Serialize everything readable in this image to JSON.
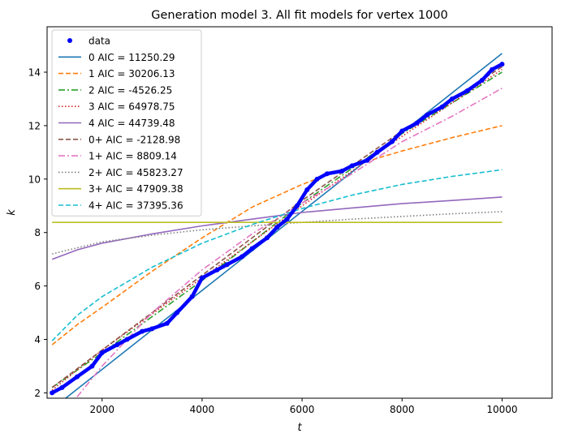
{
  "chart_data": {
    "type": "line",
    "title": "Generation model 3. All fit models for vertex 1000",
    "xlabel": "t",
    "ylabel": "k",
    "xlim": [
      900,
      11000
    ],
    "ylim": [
      1.8,
      15.7
    ],
    "xticks": [
      2000,
      4000,
      6000,
      8000,
      10000
    ],
    "xtick_labels": [
      "2000",
      "4000",
      "6000",
      "8000",
      "10000"
    ],
    "yticks": [
      2,
      4,
      6,
      8,
      10,
      12,
      14
    ],
    "ytick_labels": [
      "2",
      "4",
      "6",
      "8",
      "10",
      "12",
      "14"
    ],
    "grid": false,
    "legend_position": "upper-left",
    "data": {
      "name": "data",
      "color": "#0000ff",
      "points": [
        [
          1000,
          2.0
        ],
        [
          1200,
          2.2
        ],
        [
          1500,
          2.6
        ],
        [
          1800,
          3.0
        ],
        [
          2000,
          3.5
        ],
        [
          2300,
          3.8
        ],
        [
          2500,
          4.0
        ],
        [
          2800,
          4.3
        ],
        [
          3000,
          4.4
        ],
        [
          3300,
          4.6
        ],
        [
          3500,
          5.0
        ],
        [
          3800,
          5.6
        ],
        [
          4000,
          6.3
        ],
        [
          4300,
          6.6
        ],
        [
          4500,
          6.8
        ],
        [
          4800,
          7.1
        ],
        [
          5000,
          7.4
        ],
        [
          5300,
          7.8
        ],
        [
          5500,
          8.2
        ],
        [
          5700,
          8.5
        ],
        [
          5900,
          9.0
        ],
        [
          6100,
          9.6
        ],
        [
          6300,
          10.0
        ],
        [
          6500,
          10.2
        ],
        [
          6800,
          10.3
        ],
        [
          7000,
          10.5
        ],
        [
          7300,
          10.7
        ],
        [
          7500,
          11.0
        ],
        [
          7800,
          11.4
        ],
        [
          8000,
          11.8
        ],
        [
          8300,
          12.1
        ],
        [
          8500,
          12.4
        ],
        [
          8800,
          12.7
        ],
        [
          9000,
          13.0
        ],
        [
          9300,
          13.3
        ],
        [
          9600,
          13.7
        ],
        [
          9800,
          14.1
        ],
        [
          10000,
          14.3
        ]
      ]
    },
    "series": [
      {
        "name": "0 AIC = 11250.29",
        "color": "#1f77b4",
        "dash": "",
        "x": [
          1000,
          10000
        ],
        "y": [
          1.4,
          14.7
        ]
      },
      {
        "name": "1 AIC = 30206.13",
        "color": "#ff7f0e",
        "dash": "6,3",
        "x": [
          1000,
          1500,
          2000,
          3000,
          4000,
          5000,
          6000,
          7000,
          8000,
          9000,
          10000
        ],
        "y": [
          3.8,
          4.55,
          5.2,
          6.55,
          7.8,
          8.95,
          9.8,
          10.5,
          11.05,
          11.55,
          12.0
        ]
      },
      {
        "name": "2 AIC = -4526.25",
        "color": "#2ca02c",
        "dash": "8,3,2,3",
        "x": [
          1000,
          2000,
          4000,
          6000,
          8000,
          10000
        ],
        "y": [
          2.2,
          3.5,
          6.2,
          9.1,
          11.7,
          14.0
        ]
      },
      {
        "name": "3 AIC = 64978.75",
        "color": "#d62728",
        "dash": "1.5,2.5",
        "x": [
          1000,
          2000,
          4000,
          6000,
          8000,
          10000
        ],
        "y": [
          2.1,
          3.6,
          6.3,
          9.0,
          11.6,
          14.1
        ]
      },
      {
        "name": "4 AIC = 44739.48",
        "color": "#9467bd",
        "dash": "",
        "x": [
          1000,
          1500,
          2000,
          3000,
          4000,
          5000,
          6000,
          7000,
          8000,
          9000,
          10000
        ],
        "y": [
          7.0,
          7.35,
          7.6,
          7.95,
          8.25,
          8.5,
          8.75,
          8.92,
          9.08,
          9.2,
          9.33
        ]
      },
      {
        "name": "0+ AIC = -2128.98",
        "color": "#8c564b",
        "dash": "6,3",
        "x": [
          1000,
          2000,
          4000,
          6000,
          8000,
          10000
        ],
        "y": [
          2.2,
          3.6,
          6.4,
          9.2,
          11.8,
          14.2
        ]
      },
      {
        "name": "1+ AIC = 8809.14",
        "color": "#e377c2",
        "dash": "8,3,2,3",
        "x": [
          1500,
          2000,
          3000,
          4000,
          5000,
          6000,
          7000,
          8000,
          9000,
          10000
        ],
        "y": [
          1.85,
          3.0,
          5.0,
          6.6,
          7.95,
          9.1,
          10.2,
          11.4,
          12.35,
          13.4
        ]
      },
      {
        "name": "2+ AIC = 45823.27",
        "color": "#7f7f7f",
        "dash": "1.5,2.5",
        "x": [
          1000,
          2000,
          3000,
          4000,
          5000,
          6000,
          7000,
          8000,
          9000,
          10000
        ],
        "y": [
          7.2,
          7.65,
          7.9,
          8.1,
          8.25,
          8.38,
          8.5,
          8.6,
          8.7,
          8.78
        ]
      },
      {
        "name": "3+ AIC = 47909.38",
        "color": "#bcbd22",
        "dash": "",
        "x": [
          1000,
          10000
        ],
        "y": [
          8.38,
          8.38
        ]
      },
      {
        "name": "4+ AIC = 37395.36",
        "color": "#17becf",
        "dash": "6,3",
        "x": [
          1000,
          1500,
          2000,
          3000,
          4000,
          5000,
          6000,
          7000,
          8000,
          9000,
          10000
        ],
        "y": [
          3.95,
          4.9,
          5.6,
          6.7,
          7.6,
          8.3,
          8.9,
          9.4,
          9.8,
          10.1,
          10.35
        ]
      }
    ]
  }
}
